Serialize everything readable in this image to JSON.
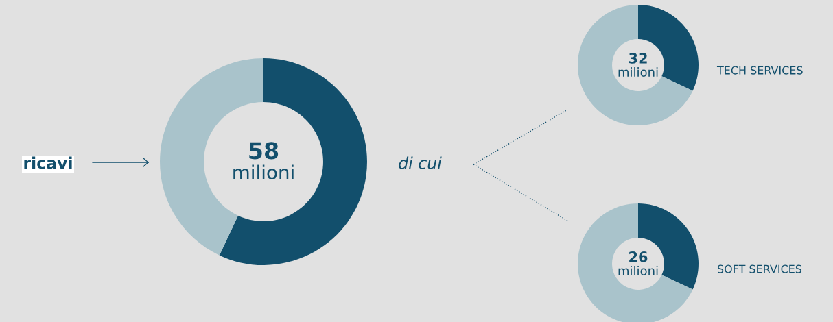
{
  "chart_data": [
    {
      "type": "donut",
      "categories": [
        null,
        null
      ],
      "values": [
        57,
        43
      ],
      "colors": [
        "#124f6c",
        "#a9c3cb"
      ],
      "annotations": [
        "58",
        "milioni",
        "ricavi",
        "di cui"
      ]
    },
    {
      "type": "donut",
      "title": "TECH SERVICES",
      "categories": [
        null,
        null
      ],
      "values": [
        32,
        68
      ],
      "colors": [
        "#124f6c",
        "#a9c3cb"
      ],
      "annotations": [
        "32",
        "milioni"
      ]
    },
    {
      "type": "donut",
      "title": "SOFT SERVICES",
      "categories": [
        null,
        null
      ],
      "values": [
        32,
        68
      ],
      "colors": [
        "#124f6c",
        "#a9c3cb"
      ],
      "annotations": [
        "26",
        "milioni"
      ]
    }
  ]
}
